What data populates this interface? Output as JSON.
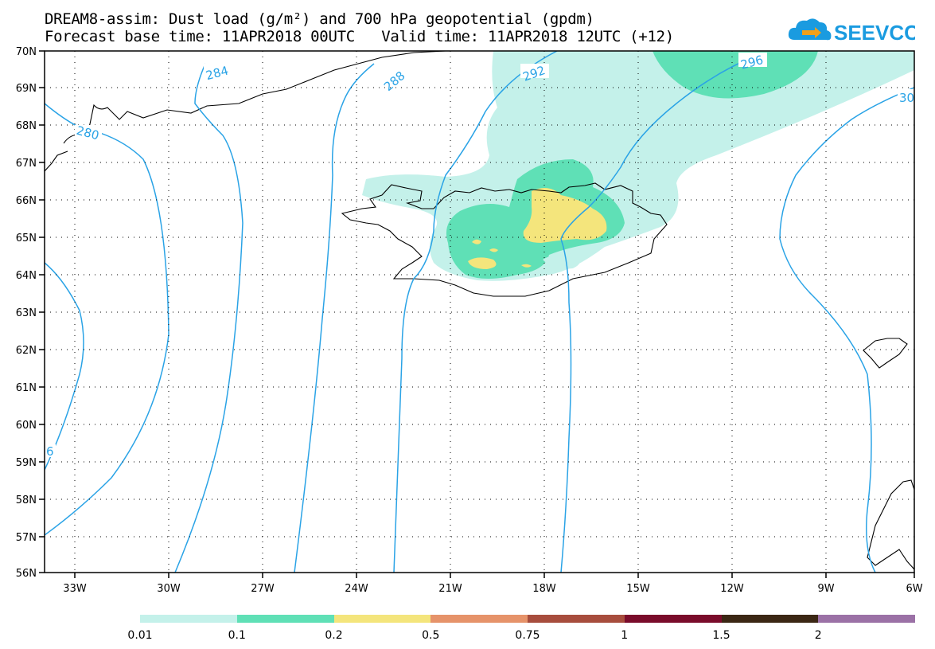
{
  "title": {
    "line1": "DREAM8-assim: Dust load (g/m²) and 700 hPa geopotential (gpdm)",
    "line2": "Forecast base time: 11APR2018 00UTC   Valid time: 11APR2018 12UTC (+12)"
  },
  "logo": {
    "text": "SEEVCCC",
    "icon": "cloud-arrow-icon",
    "color": "#1a9be0"
  },
  "map": {
    "lat_labels": [
      "70N",
      "69N",
      "68N",
      "67N",
      "66N",
      "65N",
      "64N",
      "63N",
      "62N",
      "61N",
      "60N",
      "59N",
      "58N",
      "57N",
      "56N"
    ],
    "lon_labels": [
      "33W",
      "30W",
      "27W",
      "24W",
      "21W",
      "18W",
      "15W",
      "12W",
      "9W",
      "6W"
    ],
    "lat_range": [
      56,
      70
    ],
    "lon_range": [
      -34.5,
      -6
    ],
    "grid": "dotted",
    "contour_color": "#2aa3e6",
    "contour_labels": [
      "280",
      "284",
      "288",
      "292",
      "296",
      "30",
      "6"
    ]
  },
  "colorbar": {
    "labels": [
      "0.01",
      "0.1",
      "0.2",
      "0.5",
      "0.75",
      "1",
      "1.5",
      "2"
    ],
    "colors": [
      "#c4f1ea",
      "#5fe0b6",
      "#f4e57c",
      "#e6936a",
      "#a74d3d",
      "#7a0c2b",
      "#3b2714",
      "#9b71a6"
    ]
  }
}
